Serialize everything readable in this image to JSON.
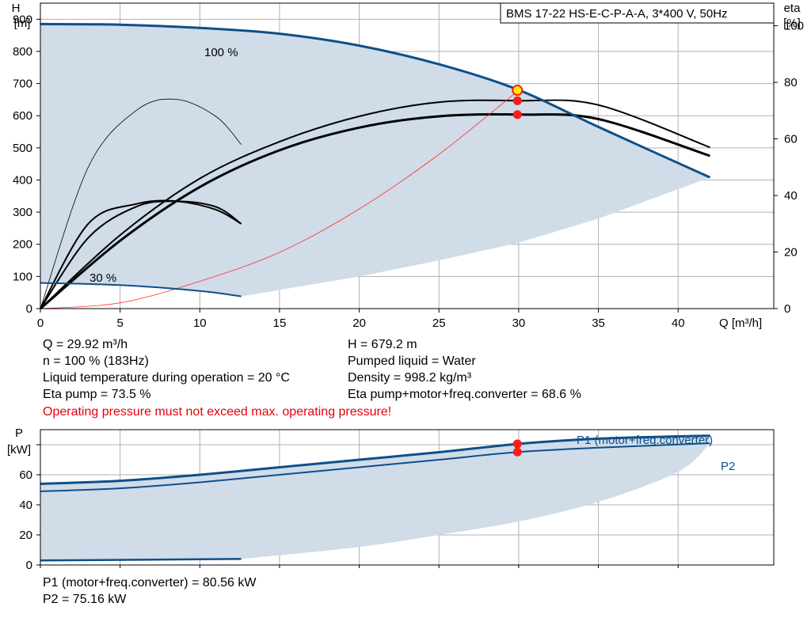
{
  "chart_data": [
    {
      "type": "line",
      "name": "pump-curve-chart",
      "title_box": "BMS 17-22 HS-E-C-P-A-A, 3*400 V, 50Hz",
      "ylabel": "H",
      "yunit": "[m]",
      "y2label": "eta",
      "y2unit": "[%]",
      "xlabel": "Q [m³/h]",
      "xlim": [
        0,
        46
      ],
      "ylim": [
        0,
        950
      ],
      "y2lim": [
        0,
        108
      ],
      "x_ticks": [
        0,
        5,
        10,
        15,
        20,
        25,
        30,
        35,
        40
      ],
      "y_ticks": [
        0,
        100,
        200,
        300,
        400,
        500,
        600,
        700,
        800,
        900
      ],
      "y2_ticks": [
        0,
        20,
        40,
        60,
        80,
        100
      ],
      "curve_labels": {
        "max": "100 %",
        "min": "30 %"
      },
      "series": [
        {
          "key": "H_100",
          "values_x": [
            0,
            5,
            10,
            15,
            20,
            25,
            30,
            35,
            42
          ],
          "values_y": [
            885,
            883,
            873,
            855,
            818,
            760,
            680,
            565,
            408
          ]
        },
        {
          "key": "H_30",
          "values_x": [
            0,
            5,
            10,
            12.6
          ],
          "values_y": [
            80,
            73,
            55,
            38
          ]
        },
        {
          "key": "system_curve",
          "values_x": [
            0,
            5,
            10,
            15,
            20,
            25,
            30
          ],
          "values_y": [
            0,
            18,
            85,
            175,
            310,
            480,
            679
          ]
        },
        {
          "key": "eta_pump_100",
          "values_x": [
            0,
            5,
            10,
            15,
            20,
            25,
            30,
            35,
            42
          ],
          "values_y": [
            0,
            26,
            46,
            59,
            68,
            73,
            73.5,
            72,
            57
          ]
        },
        {
          "key": "eta_total_100",
          "values_x": [
            0,
            5,
            10,
            15,
            20,
            25,
            30,
            35,
            42
          ],
          "values_y": [
            0,
            24,
            43,
            56,
            64,
            68,
            68.6,
            67,
            54
          ]
        },
        {
          "key": "eta_pump_30",
          "values_x": [
            0,
            3,
            6,
            8.5,
            11,
            12.6
          ],
          "values_y": [
            0,
            25,
            36,
            38,
            36,
            30
          ]
        },
        {
          "key": "eta_total_30",
          "values_x": [
            0,
            3,
            6,
            8.5,
            11,
            12.6
          ],
          "values_y": [
            0,
            30,
            37,
            38,
            35,
            30
          ]
        },
        {
          "key": "eta_thin",
          "values_x": [
            0,
            3,
            6,
            8.5,
            11,
            12.6
          ],
          "values_y": [
            0,
            50,
            70,
            74,
            68,
            58
          ]
        }
      ],
      "area_lower": {
        "values_x": [
          12.6,
          20,
          25,
          30,
          35,
          42
        ],
        "values_y": [
          38,
          100,
          150,
          205,
          280,
          408
        ]
      },
      "operating_point": {
        "x": 29.92,
        "y": 679.2,
        "eta_pump": 73.5,
        "eta_total": 68.6
      }
    },
    {
      "type": "line",
      "name": "power-chart",
      "ylabel": "P",
      "yunit": "[kW]",
      "xlim": [
        0,
        46
      ],
      "ylim": [
        0,
        90
      ],
      "x_ticks": [
        0,
        5,
        10,
        15,
        20,
        25,
        30,
        35,
        40
      ],
      "y_ticks": [
        0,
        20,
        40,
        60
      ],
      "series": [
        {
          "key": "P1",
          "label": "P1 (motor+freq.converter)",
          "values_x": [
            0,
            5,
            10,
            15,
            20,
            25,
            30,
            35,
            42
          ],
          "values_y": [
            54,
            56,
            60,
            65,
            70,
            75,
            80.56,
            84,
            86
          ]
        },
        {
          "key": "P2",
          "label": "P2",
          "values_x": [
            0,
            5,
            10,
            15,
            20,
            25,
            30,
            35,
            42
          ],
          "values_y": [
            49,
            51,
            55,
            60,
            65,
            70,
            75.16,
            78,
            81
          ]
        },
        {
          "key": "P_30",
          "values_x": [
            0,
            12.6
          ],
          "values_y": [
            3,
            4
          ]
        }
      ],
      "area_lower": {
        "values_x": [
          12.6,
          20,
          25,
          30,
          35,
          40,
          42
        ],
        "values_y": [
          4,
          12,
          20,
          29,
          42,
          62,
          81
        ]
      },
      "operating_point": {
        "x": 29.92,
        "p1": 80.56,
        "p2": 75.16
      }
    }
  ],
  "info": {
    "q": "Q = 29.92 m³/h",
    "h": "H = 679.2 m",
    "n": "n = 100 % (183Hz)",
    "pumped_liquid": "Pumped liquid = Water",
    "liquid_temp": "Liquid temperature during operation = 20 °C",
    "density": "Density = 998.2 kg/m³",
    "eta_pump": "Eta pump = 73.5 %",
    "eta_total": "Eta pump+motor+freq.converter = 68.6 %",
    "warning": "Operating pressure must not exceed max. operating pressure!",
    "p1": "P1 (motor+freq.converter) = 80.56 kW",
    "p2": "P2 = 75.16 kW"
  },
  "colors": {
    "curve_blue": "#0e4f8a",
    "area_fill": "#d0dce8",
    "grid": "#b0b0b0",
    "system_curve": "#ff3030",
    "op_point": "#ff1a1a",
    "op_marker_fill": "#ffee00",
    "warning": "#e8000b"
  }
}
